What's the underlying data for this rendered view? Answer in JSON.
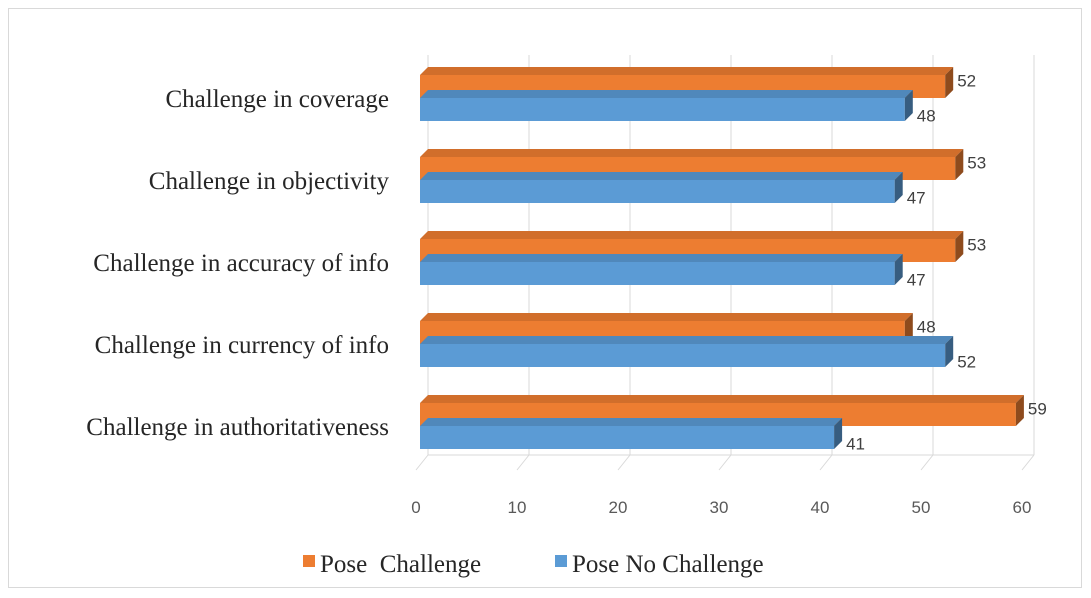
{
  "chart_data": {
    "type": "bar",
    "orientation": "horizontal",
    "categories": [
      "Challenge in coverage",
      "Challenge in objectivity",
      "Challenge in accuracy of info",
      "Challenge in currency of info",
      "Challenge in authoritativeness"
    ],
    "series": [
      {
        "name": "Pose  Challenge",
        "values": [
          52,
          53,
          53,
          48,
          59
        ],
        "color": "#ed7d31"
      },
      {
        "name": "Pose No Challenge",
        "values": [
          48,
          47,
          47,
          52,
          41
        ],
        "color": "#5b9bd5"
      }
    ],
    "xlim": [
      0,
      60
    ],
    "xticks": [
      "0",
      "10",
      "20",
      "30",
      "40",
      "50",
      "60"
    ],
    "grid": true,
    "legend": "bottom",
    "style": "3d"
  }
}
